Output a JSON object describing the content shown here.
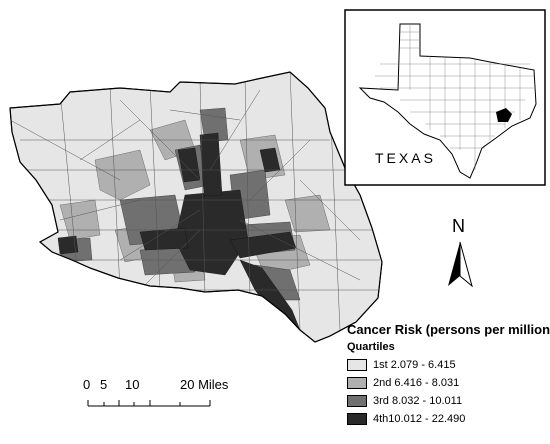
{
  "inset": {
    "label": "TEXAS"
  },
  "north": {
    "label": "N"
  },
  "legend": {
    "title": "Cancer Risk (persons per million)",
    "subtitle": "Quartiles",
    "items": [
      {
        "label": "1st 2.079 - 6.415",
        "color": "#e6e6e6"
      },
      {
        "label": "2nd 6.416 - 8.031",
        "color": "#b0b0b0"
      },
      {
        "label": "3rd 8.032 - 10.011",
        "color": "#707070"
      },
      {
        "label": "4th10.012 - 22.490",
        "color": "#2a2a2a"
      }
    ]
  },
  "scale": {
    "ticks": [
      "0",
      "5",
      "10",
      "20 Miles"
    ]
  },
  "colors": {
    "outline": "#000000",
    "background": "#ffffff"
  }
}
